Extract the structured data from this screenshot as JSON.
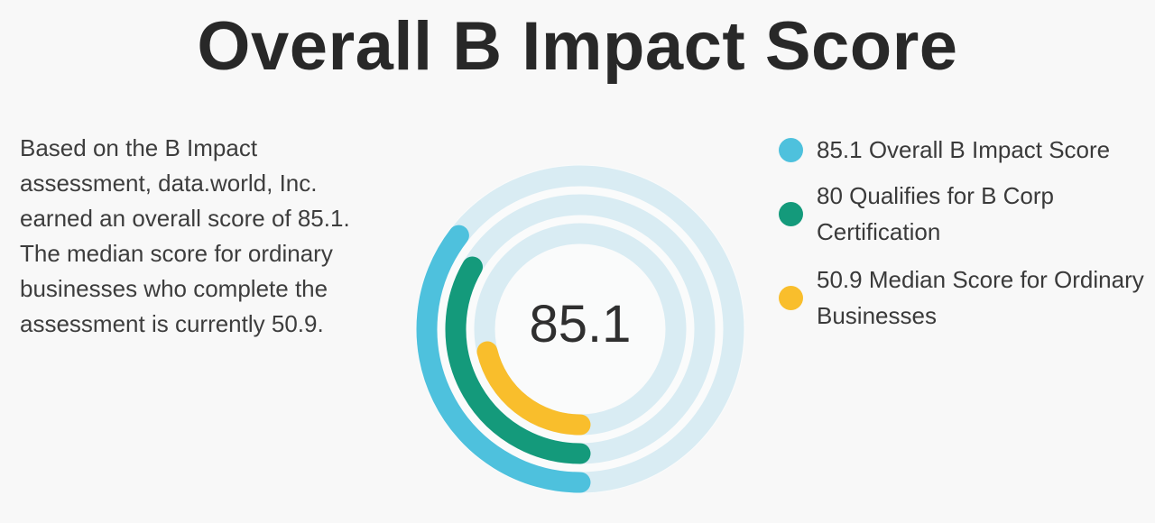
{
  "title": "Overall B Impact Score",
  "description": {
    "lines": [
      "Based on the B Impact",
      "assessment, data.world, Inc.",
      "earned an overall score of 85.1.",
      "The median score for ordinary",
      "businesses who complete the",
      "assessment is currently 50.9."
    ]
  },
  "chart_data": {
    "type": "pie",
    "variant": "concentric-radial-gauge",
    "title": "Overall B Impact Score",
    "center_label": "85.1",
    "gauge_scale_max": 240,
    "start_angle_deg": 180,
    "direction": "clockwise",
    "grid": false,
    "legend_position": "right",
    "track_color": "#d9ecf3",
    "inner_disc_color": "#fafbfb",
    "series": [
      {
        "name": "Overall B Impact Score",
        "value": 85.1,
        "color": "#4ec1dd",
        "ring": "outer"
      },
      {
        "name": "Qualifies for B Corp Certification",
        "value": 80,
        "color": "#149a7b",
        "ring": "middle"
      },
      {
        "name": "Median Score for Ordinary Businesses",
        "value": 50.9,
        "color": "#f9be2c",
        "ring": "inner"
      }
    ]
  },
  "legend": {
    "items": [
      {
        "color": "#4ec1dd",
        "lines": [
          "85.1 Overall B Impact Score",
          ""
        ]
      },
      {
        "color": "#149a7b",
        "lines": [
          "80 Qualifies for B Corp",
          "Certification"
        ]
      },
      {
        "color": "#f9be2c",
        "lines": [
          "50.9 Median Score for Ordinary",
          "Businesses"
        ]
      }
    ]
  },
  "colors": {
    "background": "#f8f8f8",
    "title_text": "#282828",
    "body_text": "#3d3d3d"
  }
}
